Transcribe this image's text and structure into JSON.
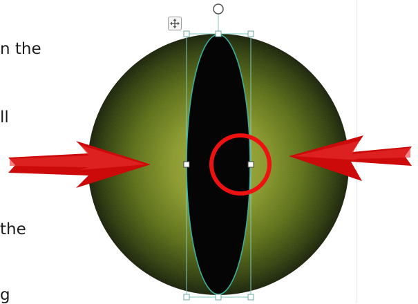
{
  "document": {
    "text_fragments": [
      "n the",
      "ll",
      "the",
      "g"
    ]
  },
  "selection": {
    "shape": "vertical ellipse pupil",
    "handles": [
      "rotation-handle",
      "top-left",
      "top-middle",
      "top-right",
      "middle-left",
      "middle-right",
      "bottom-left",
      "bottom-middle",
      "bottom-right"
    ]
  },
  "icons": {
    "layout_options": "move-arrows-icon",
    "left_arrow": "arrow-right-icon",
    "right_arrow": "arrow-left-icon",
    "highlight": "circle-highlight-icon"
  },
  "colors": {
    "eye_outer": "#1c2a05",
    "eye_mid": "#6f7f18",
    "eye_inner": "#9aa238",
    "pupil": "#050505",
    "selection": "#3ab0a0",
    "handle_border": "#6aa9a0",
    "arrow_red": "#cc0a0a",
    "highlight_red": "#ee1111"
  }
}
